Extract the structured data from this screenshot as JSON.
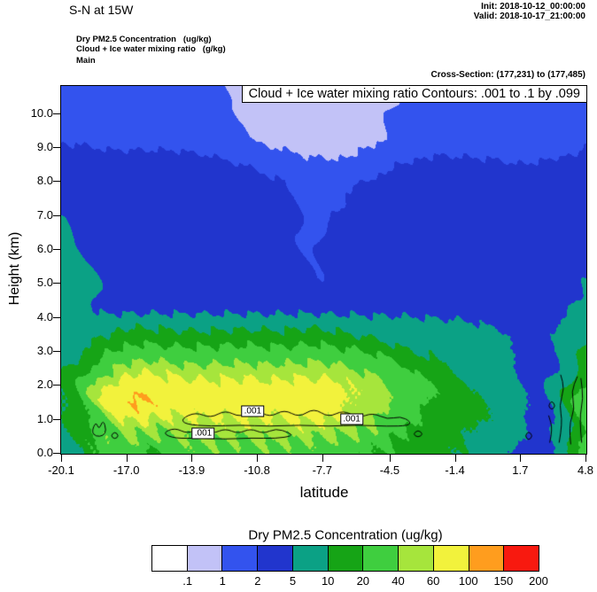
{
  "header": {
    "title": "S-N at 15W",
    "init": "Init: 2018-10-12_00:00:00",
    "valid": "Valid: 2018-10-17_21:00:00",
    "sub1": "Dry PM2.5 Concentration   (ug/kg)",
    "sub2": "Cloud + Ice water mixing ratio   (g/kg)",
    "sub3": "Main",
    "cross_section": "Cross-Section: (177,231) to (177,485)"
  },
  "legend": {
    "title": "Dry PM2.5 Concentration  (ug/kg)",
    "labels": [
      ".1",
      "1",
      "2",
      "5",
      "10",
      "20",
      "40",
      "60",
      "100",
      "150",
      "200"
    ]
  },
  "chart_data": {
    "type": "filled-contour-cross-section",
    "title": "Cloud + Ice water mixing ratio Contours: .001 to .1 by .099",
    "xlabel": "latitude",
    "ylabel": "Height (km)",
    "fill_field": "Dry PM2.5 Concentration (ug/kg)",
    "overlay_field": "Cloud + Ice water mixing ratio (g/kg)",
    "x_ticks": [
      "-20.1",
      "-17.0",
      "-13.9",
      "-10.8",
      "-7.7",
      "-4.5",
      "-1.4",
      "1.7",
      "4.8"
    ],
    "y_ticks": [
      "0.0",
      "1.0",
      "2.0",
      "3.0",
      "4.0",
      "5.0",
      "6.0",
      "7.0",
      "8.0",
      "9.0",
      "10.0"
    ],
    "x_range": [
      -20.1,
      4.8
    ],
    "y_range_km": [
      0,
      10.8
    ],
    "levels": [
      0.1,
      1,
      2,
      5,
      10,
      20,
      40,
      60,
      100,
      150,
      200
    ],
    "colors_hex": [
      "#ffffff",
      "#c2c2f7",
      "#3353ee",
      "#2135cd",
      "#0ba185",
      "#16a416",
      "#3fce3f",
      "#a6e53c",
      "#f2f23c",
      "#ff9d1e",
      "#f8190f"
    ],
    "grid": {
      "lat": [
        -20.1,
        -19.1,
        -18.1,
        -17.1,
        -16.1,
        -15.1,
        -14.1,
        -13.1,
        -12.1,
        -11.1,
        -10.1,
        -9.1,
        -8.1,
        -7.1,
        -6.1,
        -5.1,
        -4.1,
        -3.1,
        -2.1,
        -1.1,
        -0.1,
        0.9,
        1.9,
        2.9,
        3.9,
        4.8
      ],
      "height_km": [
        0,
        0.5,
        1.0,
        1.6,
        2.1,
        2.6,
        3.1,
        3.5,
        4.2,
        5.2,
        6.5,
        8.0,
        9.2,
        10.1,
        10.8
      ],
      "values": [
        [
          8,
          9,
          22,
          28,
          18,
          22,
          30,
          33,
          30,
          28,
          32,
          30,
          28,
          26,
          22,
          18,
          14,
          12,
          11,
          9,
          8,
          7,
          4,
          3.5,
          8,
          24
        ],
        [
          9,
          12,
          30,
          42,
          35,
          33,
          42,
          46,
          44,
          42,
          46,
          44,
          42,
          40,
          34,
          28,
          20,
          15,
          13,
          11,
          9,
          8,
          4.5,
          3.5,
          9,
          28
        ],
        [
          10,
          18,
          45,
          65,
          62,
          55,
          58,
          60,
          58,
          62,
          58,
          62,
          63,
          58,
          52,
          44,
          30,
          20,
          15,
          12,
          10,
          8,
          5,
          4,
          10,
          30
        ],
        [
          10,
          22,
          62,
          92,
          115,
          85,
          75,
          72,
          74,
          75,
          72,
          74,
          76,
          72,
          62,
          52,
          36,
          24,
          17,
          13,
          10,
          8,
          5,
          4,
          9,
          26
        ],
        [
          9,
          18,
          48,
          70,
          78,
          68,
          64,
          62,
          64,
          64,
          62,
          64,
          66,
          62,
          54,
          44,
          30,
          20,
          14,
          11,
          9,
          7,
          5,
          4,
          8,
          20
        ],
        [
          8,
          13,
          28,
          42,
          46,
          42,
          40,
          40,
          42,
          42,
          40,
          42,
          44,
          40,
          34,
          27,
          20,
          14,
          11,
          9,
          7,
          6,
          4.5,
          4,
          7,
          15
        ],
        [
          6,
          9,
          16,
          22,
          24,
          22,
          21,
          21,
          22,
          22,
          21,
          22,
          23,
          21,
          18,
          14,
          11,
          9,
          8,
          7,
          6,
          5,
          4,
          4,
          6,
          11
        ],
        [
          5.5,
          7,
          9.5,
          11.5,
          12.5,
          11.5,
          11,
          11,
          11.5,
          11.5,
          11,
          11.5,
          12,
          11,
          9.5,
          8.5,
          7.5,
          7,
          6.5,
          6,
          5.5,
          5,
          4.5,
          4.5,
          6,
          9
        ],
        [
          7,
          6.5,
          4.5,
          4,
          4,
          4,
          4,
          4,
          4,
          4,
          4,
          4,
          4,
          3.8,
          4,
          4,
          4.2,
          4.2,
          4.2,
          4.2,
          4,
          3.8,
          3.6,
          3.6,
          4.5,
          7
        ],
        [
          7.5,
          6,
          4,
          3.8,
          3.8,
          3.8,
          3.8,
          3.8,
          3.8,
          3.6,
          3.4,
          2.6,
          1.8,
          3,
          3.4,
          3.6,
          3.8,
          4,
          4,
          3.8,
          3.6,
          3.4,
          3.2,
          3.2,
          3.8,
          5
        ],
        [
          5.5,
          4.5,
          3.8,
          3.6,
          3.6,
          3.6,
          3.6,
          3.6,
          2.0,
          3.2,
          2.4,
          2.2,
          1.7,
          2.4,
          3,
          3.2,
          3.4,
          3.6,
          3.6,
          3.4,
          3.2,
          3,
          3,
          3,
          3.4,
          4
        ],
        [
          3.6,
          3.2,
          3,
          3,
          3,
          3,
          3,
          2.9,
          2.8,
          2.6,
          2.2,
          1.9,
          1.6,
          1.5,
          1.8,
          2.2,
          2.6,
          2.8,
          2.9,
          2.8,
          2.7,
          2.6,
          2.5,
          2.6,
          2.8,
          3.2
        ],
        [
          1.9,
          1.8,
          1.7,
          1.7,
          1.7,
          1.7,
          1.6,
          1.5,
          1.3,
          1.0,
          0.8,
          0.7,
          0.6,
          0.6,
          0.7,
          0.9,
          1.2,
          1.4,
          1.5,
          1.5,
          1.5,
          1.4,
          1.3,
          1.4,
          1.6,
          1.8
        ],
        [
          1.7,
          1.6,
          1.5,
          1.5,
          1.5,
          1.5,
          1.4,
          1.3,
          1.0,
          0.8,
          0.7,
          0.6,
          0.55,
          0.6,
          0.7,
          0.8,
          1.1,
          1.3,
          1.4,
          1.4,
          1.3,
          1.2,
          1.1,
          1.2,
          1.4,
          1.6
        ],
        [
          1.6,
          1.5,
          1.5,
          1.4,
          1.4,
          1.4,
          1.3,
          1.2,
          0.9,
          0.75,
          0.65,
          0.6,
          0.55,
          0.6,
          0.7,
          0.8,
          1.0,
          1.2,
          1.3,
          1.3,
          1.2,
          1.1,
          0.95,
          1.1,
          1.3,
          1.5
        ]
      ]
    },
    "overlay": {
      "contour_range": ".001 to .1 by .099",
      "labels": [
        {
          "text": ".001",
          "lat": -11.0,
          "h": 1.22
        },
        {
          "text": ".001",
          "lat": -6.3,
          "h": 1.0
        },
        {
          "text": ".001",
          "lat": -13.35,
          "h": 0.57
        }
      ],
      "paths": [
        {
          "closed": true,
          "pts": [
            [
              -18.65,
              0.62
            ],
            [
              -18.45,
              0.92
            ],
            [
              -18.3,
              0.68
            ],
            [
              -18.1,
              0.98
            ],
            [
              -17.95,
              0.66
            ],
            [
              -18.1,
              0.5
            ],
            [
              -18.45,
              0.48
            ]
          ]
        },
        {
          "closed": true,
          "pts": [
            [
              -17.75,
              0.5
            ],
            [
              -17.55,
              0.63
            ],
            [
              -17.35,
              0.5
            ],
            [
              -17.55,
              0.4
            ]
          ]
        },
        {
          "closed": true,
          "pts": [
            [
              -15.3,
              0.58
            ],
            [
              -14.7,
              0.74
            ],
            [
              -14.1,
              0.56
            ],
            [
              -13.5,
              0.74
            ],
            [
              -12.9,
              0.56
            ],
            [
              -12.3,
              0.72
            ],
            [
              -11.7,
              0.56
            ],
            [
              -11.1,
              0.72
            ],
            [
              -10.5,
              0.56
            ],
            [
              -9.9,
              0.72
            ],
            [
              -9.3,
              0.6
            ],
            [
              -9.1,
              0.5
            ],
            [
              -9.9,
              0.42
            ],
            [
              -11.1,
              0.44
            ],
            [
              -12.3,
              0.4
            ],
            [
              -13.5,
              0.44
            ],
            [
              -14.7,
              0.42
            ]
          ]
        },
        {
          "closed": true,
          "pts": [
            [
              -14.4,
              1.0
            ],
            [
              -13.7,
              1.2
            ],
            [
              -13.0,
              1.02
            ],
            [
              -12.3,
              1.26
            ],
            [
              -11.6,
              1.04
            ],
            [
              -10.9,
              1.3
            ],
            [
              -10.2,
              1.04
            ],
            [
              -9.5,
              1.28
            ],
            [
              -8.8,
              1.04
            ],
            [
              -8.1,
              1.32
            ],
            [
              -7.4,
              1.04
            ],
            [
              -6.7,
              1.26
            ],
            [
              -6.0,
              1.02
            ],
            [
              -5.3,
              1.18
            ],
            [
              -4.6,
              0.98
            ],
            [
              -4.0,
              1.08
            ],
            [
              -3.5,
              0.92
            ],
            [
              -3.6,
              0.8
            ],
            [
              -4.6,
              0.78
            ],
            [
              -6.0,
              0.82
            ],
            [
              -7.4,
              0.78
            ],
            [
              -8.8,
              0.82
            ],
            [
              -10.2,
              0.78
            ],
            [
              -11.6,
              0.82
            ],
            [
              -13.0,
              0.78
            ],
            [
              -14.2,
              0.84
            ]
          ]
        },
        {
          "closed": true,
          "pts": [
            [
              -3.4,
              0.55
            ],
            [
              -3.15,
              0.68
            ],
            [
              -2.9,
              0.55
            ],
            [
              -3.15,
              0.45
            ]
          ]
        },
        {
          "closed": false,
          "pts": [
            [
              3.55,
              0.3
            ],
            [
              3.72,
              0.9
            ],
            [
              3.55,
              1.4
            ],
            [
              3.8,
              1.9
            ],
            [
              3.62,
              2.3
            ]
          ]
        },
        {
          "closed": false,
          "pts": [
            [
              4.1,
              0.25
            ],
            [
              4.0,
              0.8
            ],
            [
              4.3,
              1.3
            ],
            [
              4.12,
              1.8
            ],
            [
              4.42,
              2.25
            ]
          ]
        },
        {
          "closed": false,
          "pts": [
            [
              4.62,
              0.3
            ],
            [
              4.5,
              1.0
            ],
            [
              4.7,
              1.6
            ],
            [
              4.58,
              2.2
            ]
          ]
        },
        {
          "closed": false,
          "pts": [
            [
              3.1,
              0.3
            ],
            [
              3.25,
              0.7
            ],
            [
              3.05,
              1.1
            ]
          ]
        },
        {
          "closed": true,
          "pts": [
            [
              2.1,
              0.36
            ],
            [
              2.3,
              0.5
            ],
            [
              2.1,
              0.64
            ],
            [
              1.92,
              0.5
            ]
          ]
        },
        {
          "closed": true,
          "pts": [
            [
              3.02,
              1.38
            ],
            [
              3.2,
              1.54
            ],
            [
              3.38,
              1.38
            ],
            [
              3.2,
              1.26
            ]
          ]
        }
      ]
    }
  }
}
